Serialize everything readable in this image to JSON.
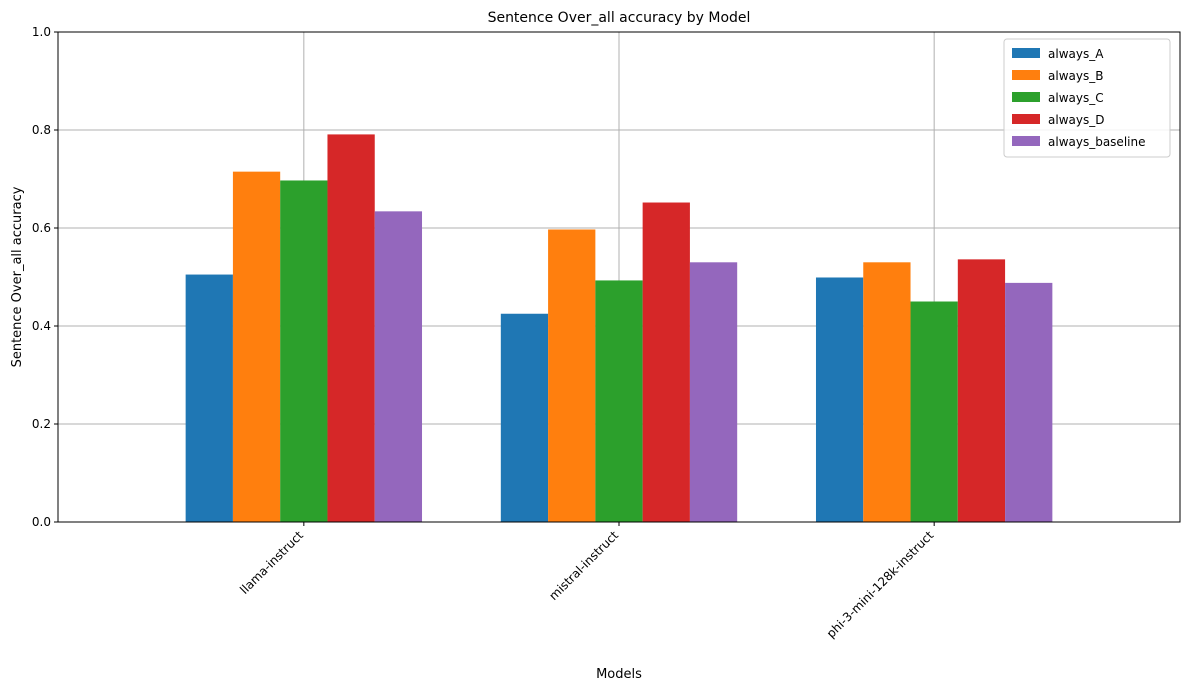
{
  "chart_data": {
    "type": "bar",
    "title": "Sentence Over_all accuracy by Model",
    "xlabel": "Models",
    "ylabel": "Sentence Over_all accuracy",
    "categories": [
      "llama-instruct",
      "mistral-instruct",
      "phi-3-mini-128k-instruct"
    ],
    "series": [
      {
        "name": "always_A",
        "color": "#1f77b4",
        "values": [
          0.505,
          0.425,
          0.499
        ]
      },
      {
        "name": "always_B",
        "color": "#ff7f0e",
        "values": [
          0.715,
          0.597,
          0.53
        ]
      },
      {
        "name": "always_C",
        "color": "#2ca02c",
        "values": [
          0.697,
          0.493,
          0.45
        ]
      },
      {
        "name": "always_D",
        "color": "#d62728",
        "values": [
          0.791,
          0.652,
          0.536
        ]
      },
      {
        "name": "always_baseline",
        "color": "#9467bd",
        "values": [
          0.634,
          0.53,
          0.488
        ]
      }
    ],
    "ylim": [
      0,
      1.0
    ],
    "yticks": [
      "0.0",
      "0.2",
      "0.4",
      "0.6",
      "0.8",
      "1.0"
    ],
    "grid": true,
    "legend_position": "top-right"
  }
}
